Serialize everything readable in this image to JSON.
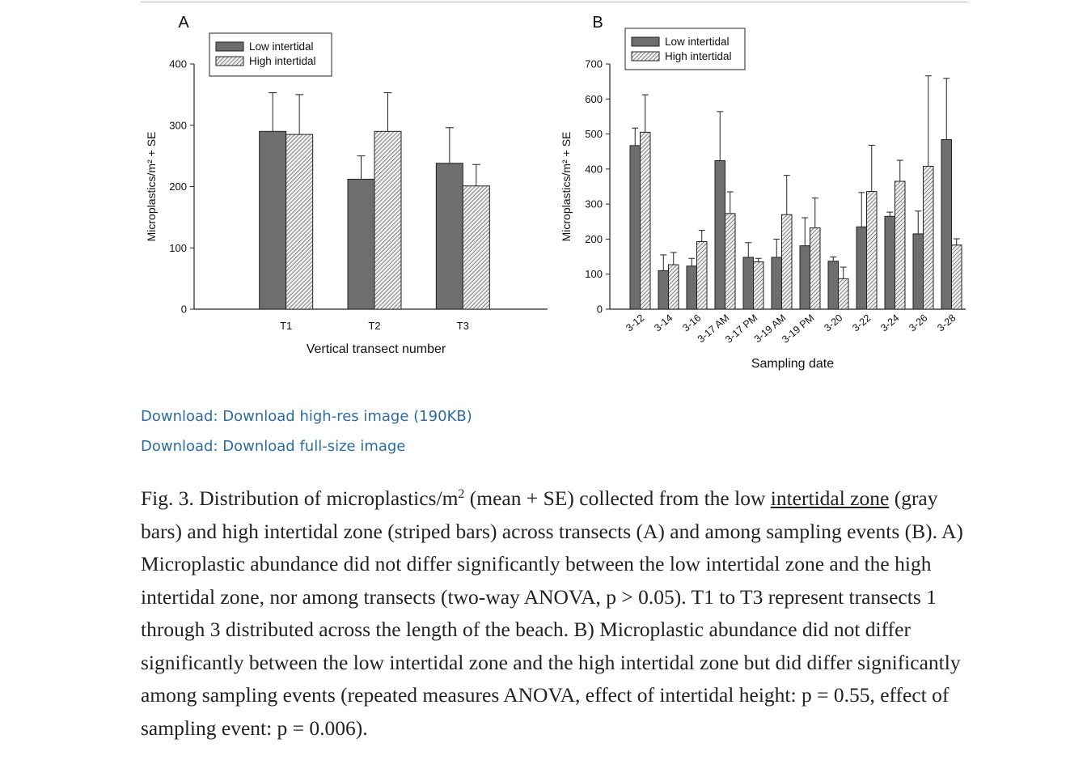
{
  "figure": {
    "legend": {
      "low": "Low intertidal",
      "high": "High intertidal"
    },
    "colors": {
      "low": "#6e6e6e",
      "axis": "#222222"
    },
    "panels": [
      {
        "label": "A",
        "chart_data": {
          "type": "bar",
          "ylabel": "Microplastics/m² + SE",
          "xlabel": "Vertical transect number",
          "ylim": [
            0,
            400
          ],
          "yticks": [
            0,
            100,
            200,
            300,
            400
          ],
          "categories": [
            "T1",
            "T2",
            "T3"
          ],
          "series": [
            {
              "name": "Low intertidal",
              "values": [
                290,
                212,
                238
              ],
              "se": [
                63,
                38,
                58
              ]
            },
            {
              "name": "High intertidal",
              "values": [
                285,
                290,
                201
              ],
              "se": [
                65,
                63,
                35
              ]
            }
          ],
          "legend_position": "top-left"
        }
      },
      {
        "label": "B",
        "chart_data": {
          "type": "bar",
          "ylabel": "Microplastics/m² + SE",
          "xlabel": "Sampling date",
          "ylim": [
            0,
            700
          ],
          "yticks": [
            0,
            100,
            200,
            300,
            400,
            500,
            600,
            700
          ],
          "categories": [
            "3-12",
            "3-14",
            "3-16",
            "3-17 AM",
            "3-17 PM",
            "3-19 AM",
            "3-19 PM",
            "3-20",
            "3-22",
            "3-24",
            "3-26",
            "3-28"
          ],
          "series": [
            {
              "name": "Low intertidal",
              "values": [
                467,
                110,
                123,
                424,
                148,
                148,
                181,
                137,
                235,
                265,
                215,
                484
              ],
              "se": [
                50,
                45,
                22,
                140,
                42,
                52,
                80,
                12,
                98,
                12,
                65,
                175
              ]
            },
            {
              "name": "High intertidal",
              "values": [
                505,
                127,
                193,
                273,
                135,
                270,
                232,
                87,
                336,
                365,
                408,
                183
              ],
              "se": [
                107,
                35,
                32,
                62,
                10,
                112,
                85,
                33,
                132,
                60,
                258,
                18
              ]
            }
          ],
          "legend_position": "top-left"
        }
      }
    ]
  },
  "downloads": [
    "Download: Download high-res image (190KB)",
    "Download: Download full-size image"
  ],
  "caption": {
    "part1": "Fig. 3. Distribution of microplastics/m",
    "sup": "2",
    "part2": " (mean + SE) collected from the low ",
    "underlined": "intertidal zone",
    "part3": " (gray bars) and high intertidal zone (striped bars) across transects (A) and among sampling events (B). A) Microplastic abundance did not differ significantly between the low intertidal zone and the high intertidal zone, nor among transects (two-way ANOVA, p > 0.05). T1 to T3 represent transects 1 through 3 distributed across the length of the beach. B) Microplastic abundance did not differ significantly between the low intertidal zone and the high intertidal zone but did differ significantly among sampling events (repeated measures ANOVA, effect of intertidal height: p = 0.55, effect of sampling event: p = 0.006)."
  }
}
